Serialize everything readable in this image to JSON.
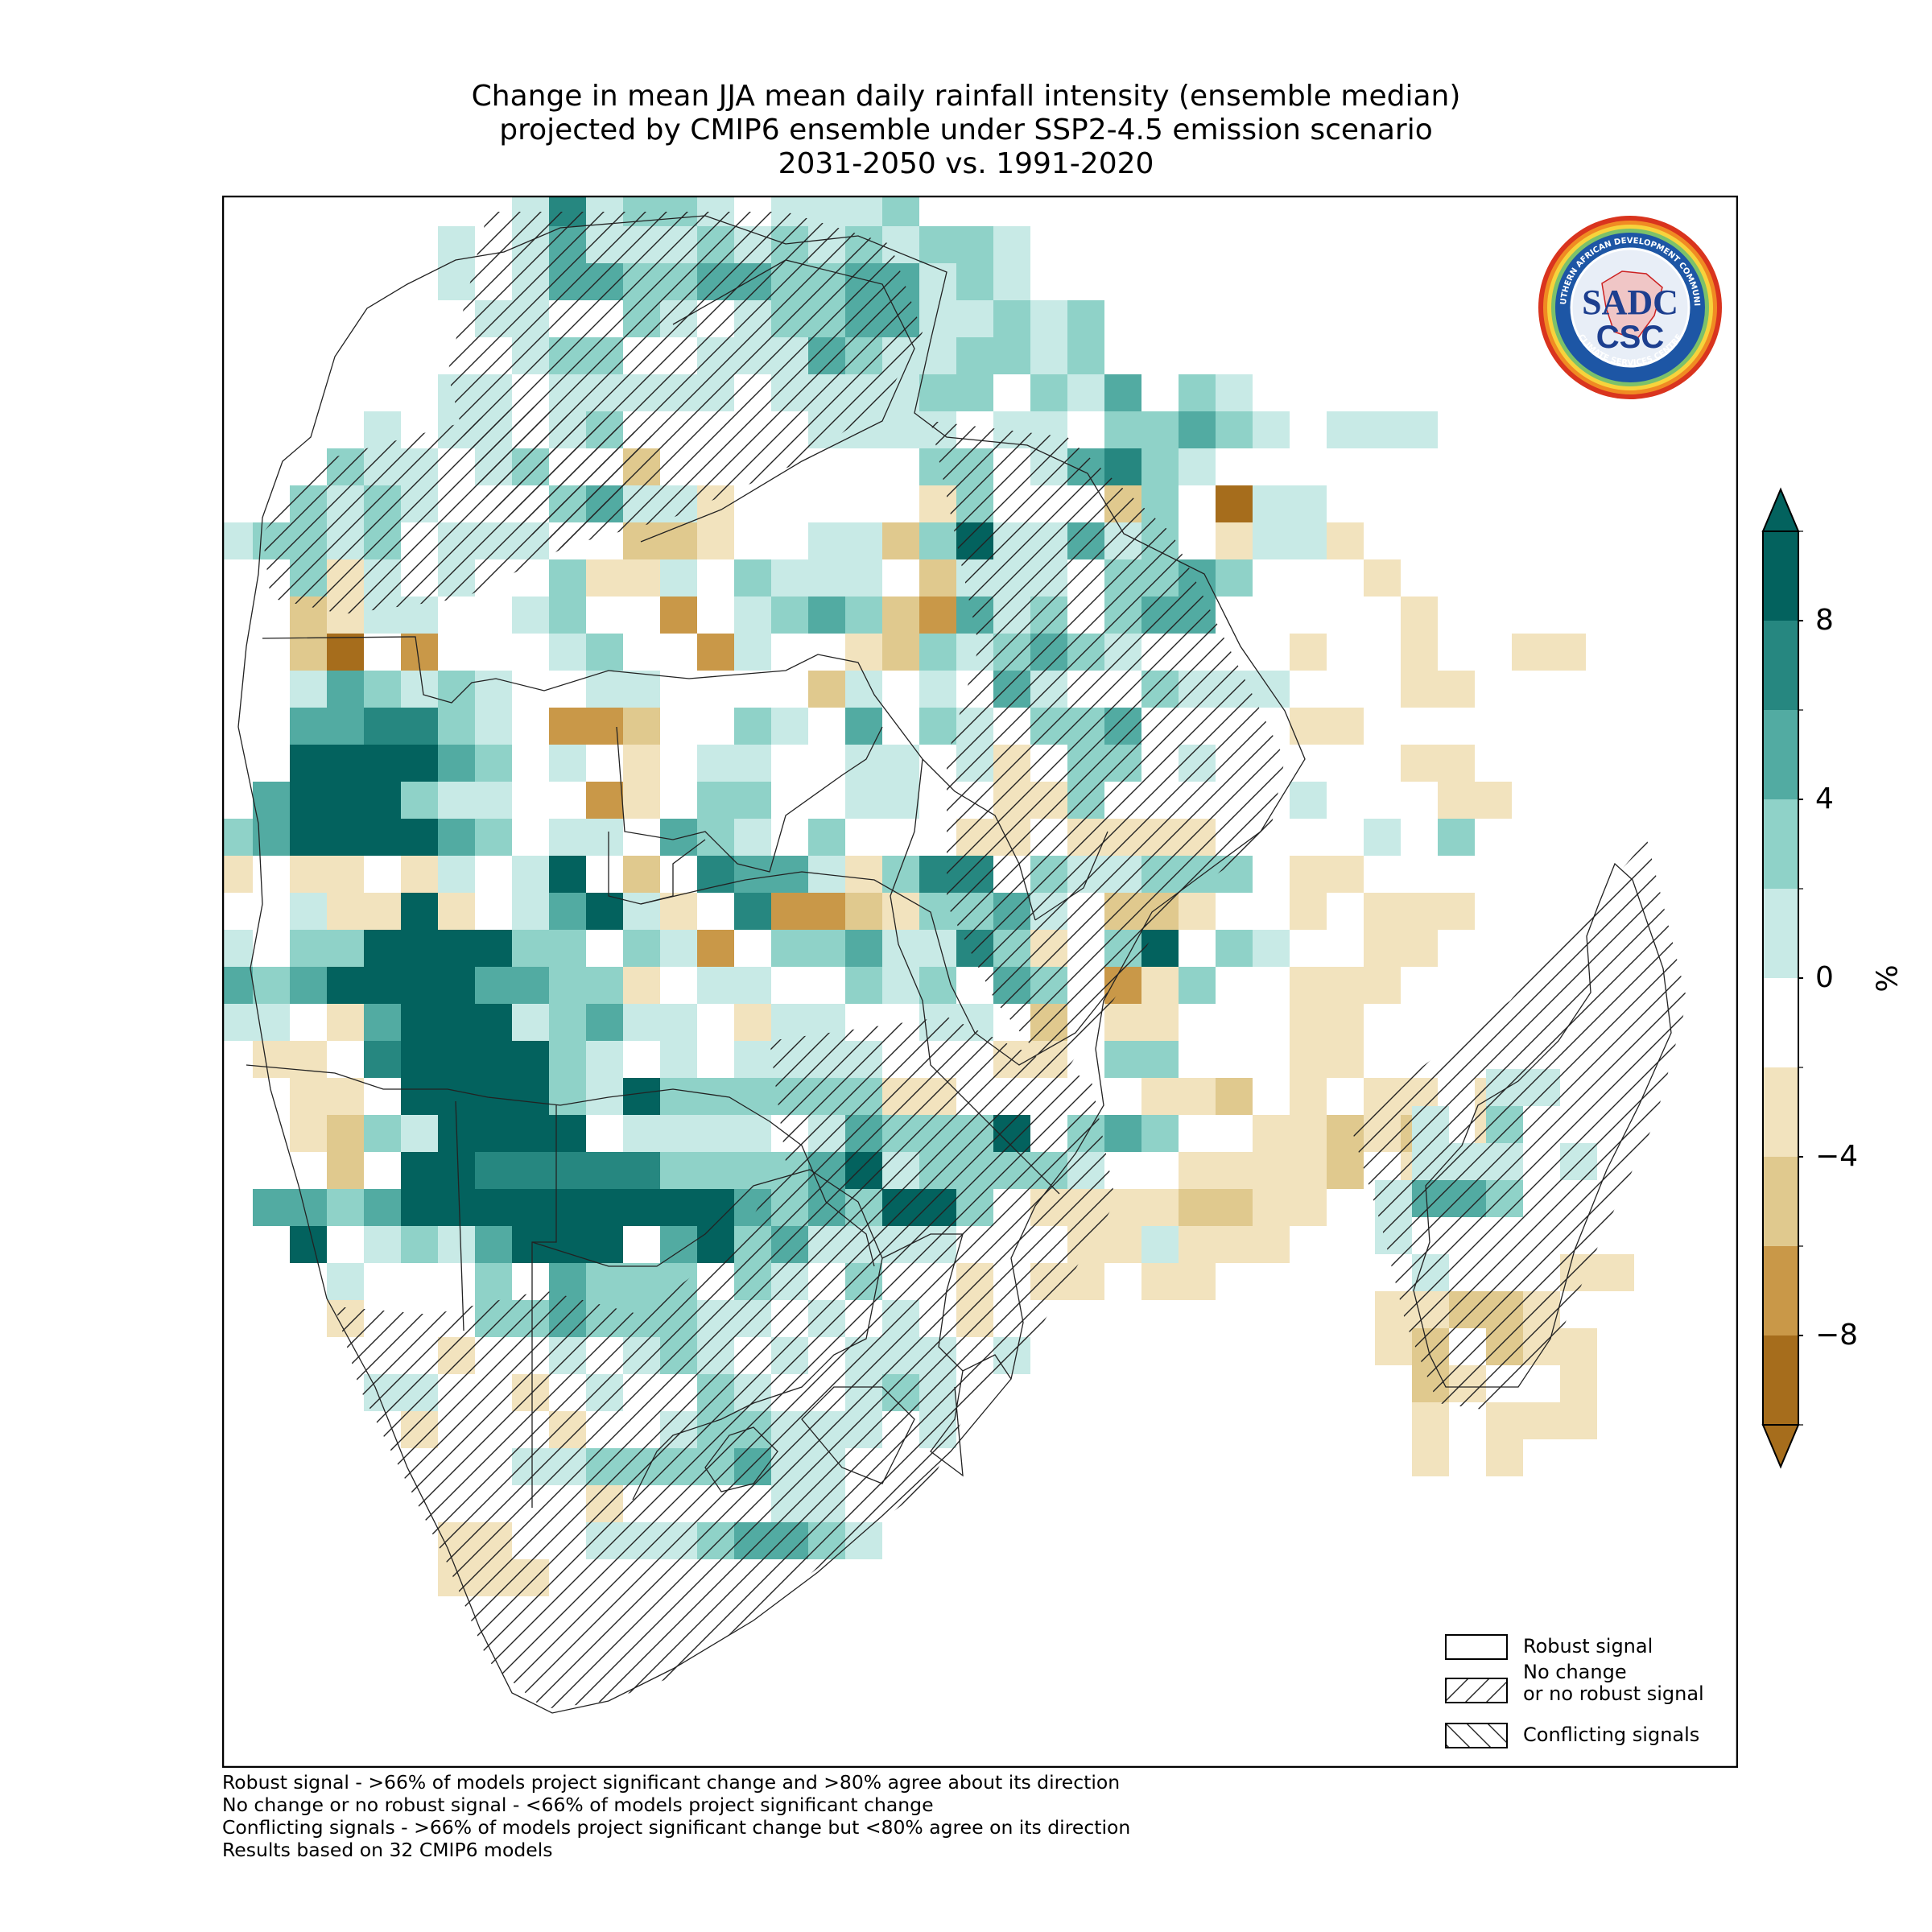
{
  "title": {
    "line1": "Change in mean JJA mean daily rainfall intensity (ensemble median)",
    "line2": "projected by CMIP6 ensemble under SSP2-4.5 emission scenario",
    "line3": "2031-2050 vs. 1991-2020"
  },
  "logo": {
    "main_text": "SADC",
    "sub_text": "CSC",
    "ring_text_top": "SOUTHERN AFRICAN DEVELOPMENT COMMUNITY",
    "ring_text_bottom": "CLIMATE SERVICES CENTRE"
  },
  "colorbar": {
    "unit": "%",
    "ticks": [
      "8",
      "4",
      "0",
      "−4",
      "−8"
    ],
    "tick_values": [
      8,
      4,
      0,
      -4,
      -8
    ],
    "range": [
      -10,
      10
    ],
    "extend": "both",
    "colors": [
      "#a66d1c",
      "#c99848",
      "#e0c98e",
      "#f2e3be",
      "#ffffff",
      "#c8eae6",
      "#8fd2c8",
      "#52aba2",
      "#268780",
      "#03625e"
    ]
  },
  "legend": {
    "items": [
      {
        "label": "Robust signal",
        "hatch": "none"
      },
      {
        "label_line1": "No change",
        "label_line2": "or no robust signal",
        "hatch": "forward-diagonal"
      },
      {
        "label": "Conflicting signals",
        "hatch": "back-diagonal"
      }
    ],
    "placement": "bottom-right"
  },
  "footnotes": [
    "Robust signal - >66% of models project significant change and >80% agree about its direction",
    "No change or no robust signal - <66% of models project significant change",
    "Conflicting signals - >66% of models project significant change but <80% agree on its direction",
    "Results based on 32 CMIP6 models"
  ]
}
